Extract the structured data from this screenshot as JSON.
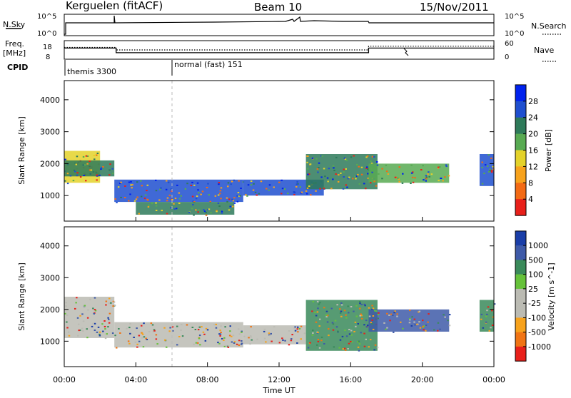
{
  "header": {
    "station": "Kerguelen (fitACF)",
    "beam": "Beam 10",
    "date": "15/Nov/2011"
  },
  "summary": {
    "nsky_label": "N.Sky",
    "nsearch_label": "N.Search",
    "freq_label_1": "Freq.",
    "freq_label_2": "[MHz]",
    "nave_label": "Nave",
    "cpid_label": "CPID",
    "nsky_ticks": [
      "10^5",
      "10^0"
    ],
    "nsearch_ticks": [
      "10^5",
      "10^0"
    ],
    "freq_ticks": [
      "18",
      "8"
    ],
    "nave_ticks": [
      "60",
      "0"
    ],
    "cpid_segments": [
      {
        "label": "themis 3300",
        "start_hour": 0
      },
      {
        "label": "normal (fast) 151",
        "start_hour": 6
      }
    ],
    "freq_series": {
      "hours": [
        0,
        2.9,
        2.9,
        17,
        17,
        24
      ],
      "mhz": [
        14,
        14,
        11.5,
        11.5,
        14,
        14
      ]
    },
    "nave_series": {
      "hours": [
        0,
        2.9,
        2.9,
        17,
        17,
        24
      ],
      "value": [
        38,
        38,
        30,
        30,
        42,
        42
      ]
    }
  },
  "chart_data": [
    {
      "type": "heatmap",
      "name": "power-panel",
      "ylabel": "Slant Range [km]",
      "yticks": [
        1000,
        2000,
        3000,
        4000
      ],
      "ylim": [
        200,
        4600
      ],
      "xlim": [
        0,
        24
      ],
      "colorbar_label": "Power [dB]",
      "colorbar_ticks": [
        "28",
        "24",
        "20",
        "16",
        "12",
        "8",
        "4"
      ],
      "colorbar_colors": [
        "#0022ee",
        "#1f4fcf",
        "#2e7a5a",
        "#58aa52",
        "#e4d22a",
        "#f7a21c",
        "#f36a14",
        "#e8201a"
      ],
      "echo_bands": [
        {
          "start_h": 0.0,
          "end_h": 2.0,
          "range_lo": 1400,
          "range_hi": 2400,
          "level": 3
        },
        {
          "start_h": 0.0,
          "end_h": 2.8,
          "range_lo": 1600,
          "range_hi": 2100,
          "level": 5
        },
        {
          "start_h": 2.8,
          "end_h": 10.0,
          "range_lo": 800,
          "range_hi": 1500,
          "level": 6
        },
        {
          "start_h": 4.0,
          "end_h": 9.5,
          "range_lo": 400,
          "range_hi": 800,
          "level": 5
        },
        {
          "start_h": 10.0,
          "end_h": 14.5,
          "range_lo": 1000,
          "range_hi": 1500,
          "level": 6
        },
        {
          "start_h": 13.5,
          "end_h": 17.5,
          "range_lo": 1200,
          "range_hi": 2300,
          "level": 5
        },
        {
          "start_h": 17.0,
          "end_h": 21.5,
          "range_lo": 1400,
          "range_hi": 2000,
          "level": 4
        },
        {
          "start_h": 23.2,
          "end_h": 24.0,
          "range_lo": 1300,
          "range_hi": 2300,
          "level": 6
        }
      ]
    },
    {
      "type": "heatmap",
      "name": "velocity-panel",
      "ylabel": "Slant Range [km]",
      "yticks": [
        1000,
        2000,
        3000,
        4000
      ],
      "ylim": [
        200,
        4600
      ],
      "xlim": [
        0,
        24
      ],
      "colorbar_label": "Velocity [m s^-1]",
      "colorbar_ticks": [
        "1000",
        "500",
        "100",
        "25",
        "-25",
        "-100",
        "-500",
        "-1000"
      ],
      "colorbar_colors": [
        "#1a3ea8",
        "#3e5aa8",
        "#3a8a5a",
        "#66c23a",
        "#bbbbb3",
        "#bbbbb3",
        "#f7a21c",
        "#f07414",
        "#e8201a"
      ],
      "echo_bands": [
        {
          "start_h": 0.0,
          "end_h": 2.8,
          "range_lo": 1100,
          "range_hi": 2400,
          "level": 4
        },
        {
          "start_h": 2.8,
          "end_h": 10.0,
          "range_lo": 800,
          "range_hi": 1600,
          "level": 4
        },
        {
          "start_h": 10.0,
          "end_h": 13.5,
          "range_lo": 900,
          "range_hi": 1500,
          "level": 4
        },
        {
          "start_h": 13.5,
          "end_h": 17.5,
          "range_lo": 700,
          "range_hi": 2300,
          "level": 6
        },
        {
          "start_h": 17.0,
          "end_h": 21.5,
          "range_lo": 1300,
          "range_hi": 2000,
          "level": 7
        },
        {
          "start_h": 23.2,
          "end_h": 24.0,
          "range_lo": 1300,
          "range_hi": 2300,
          "level": 6
        }
      ]
    }
  ],
  "xaxis": {
    "label": "Time UT",
    "ticks": [
      "00:00",
      "04:00",
      "08:00",
      "12:00",
      "16:00",
      "20:00",
      "00:00"
    ],
    "tick_hours": [
      0,
      4,
      8,
      12,
      16,
      20,
      24
    ]
  }
}
